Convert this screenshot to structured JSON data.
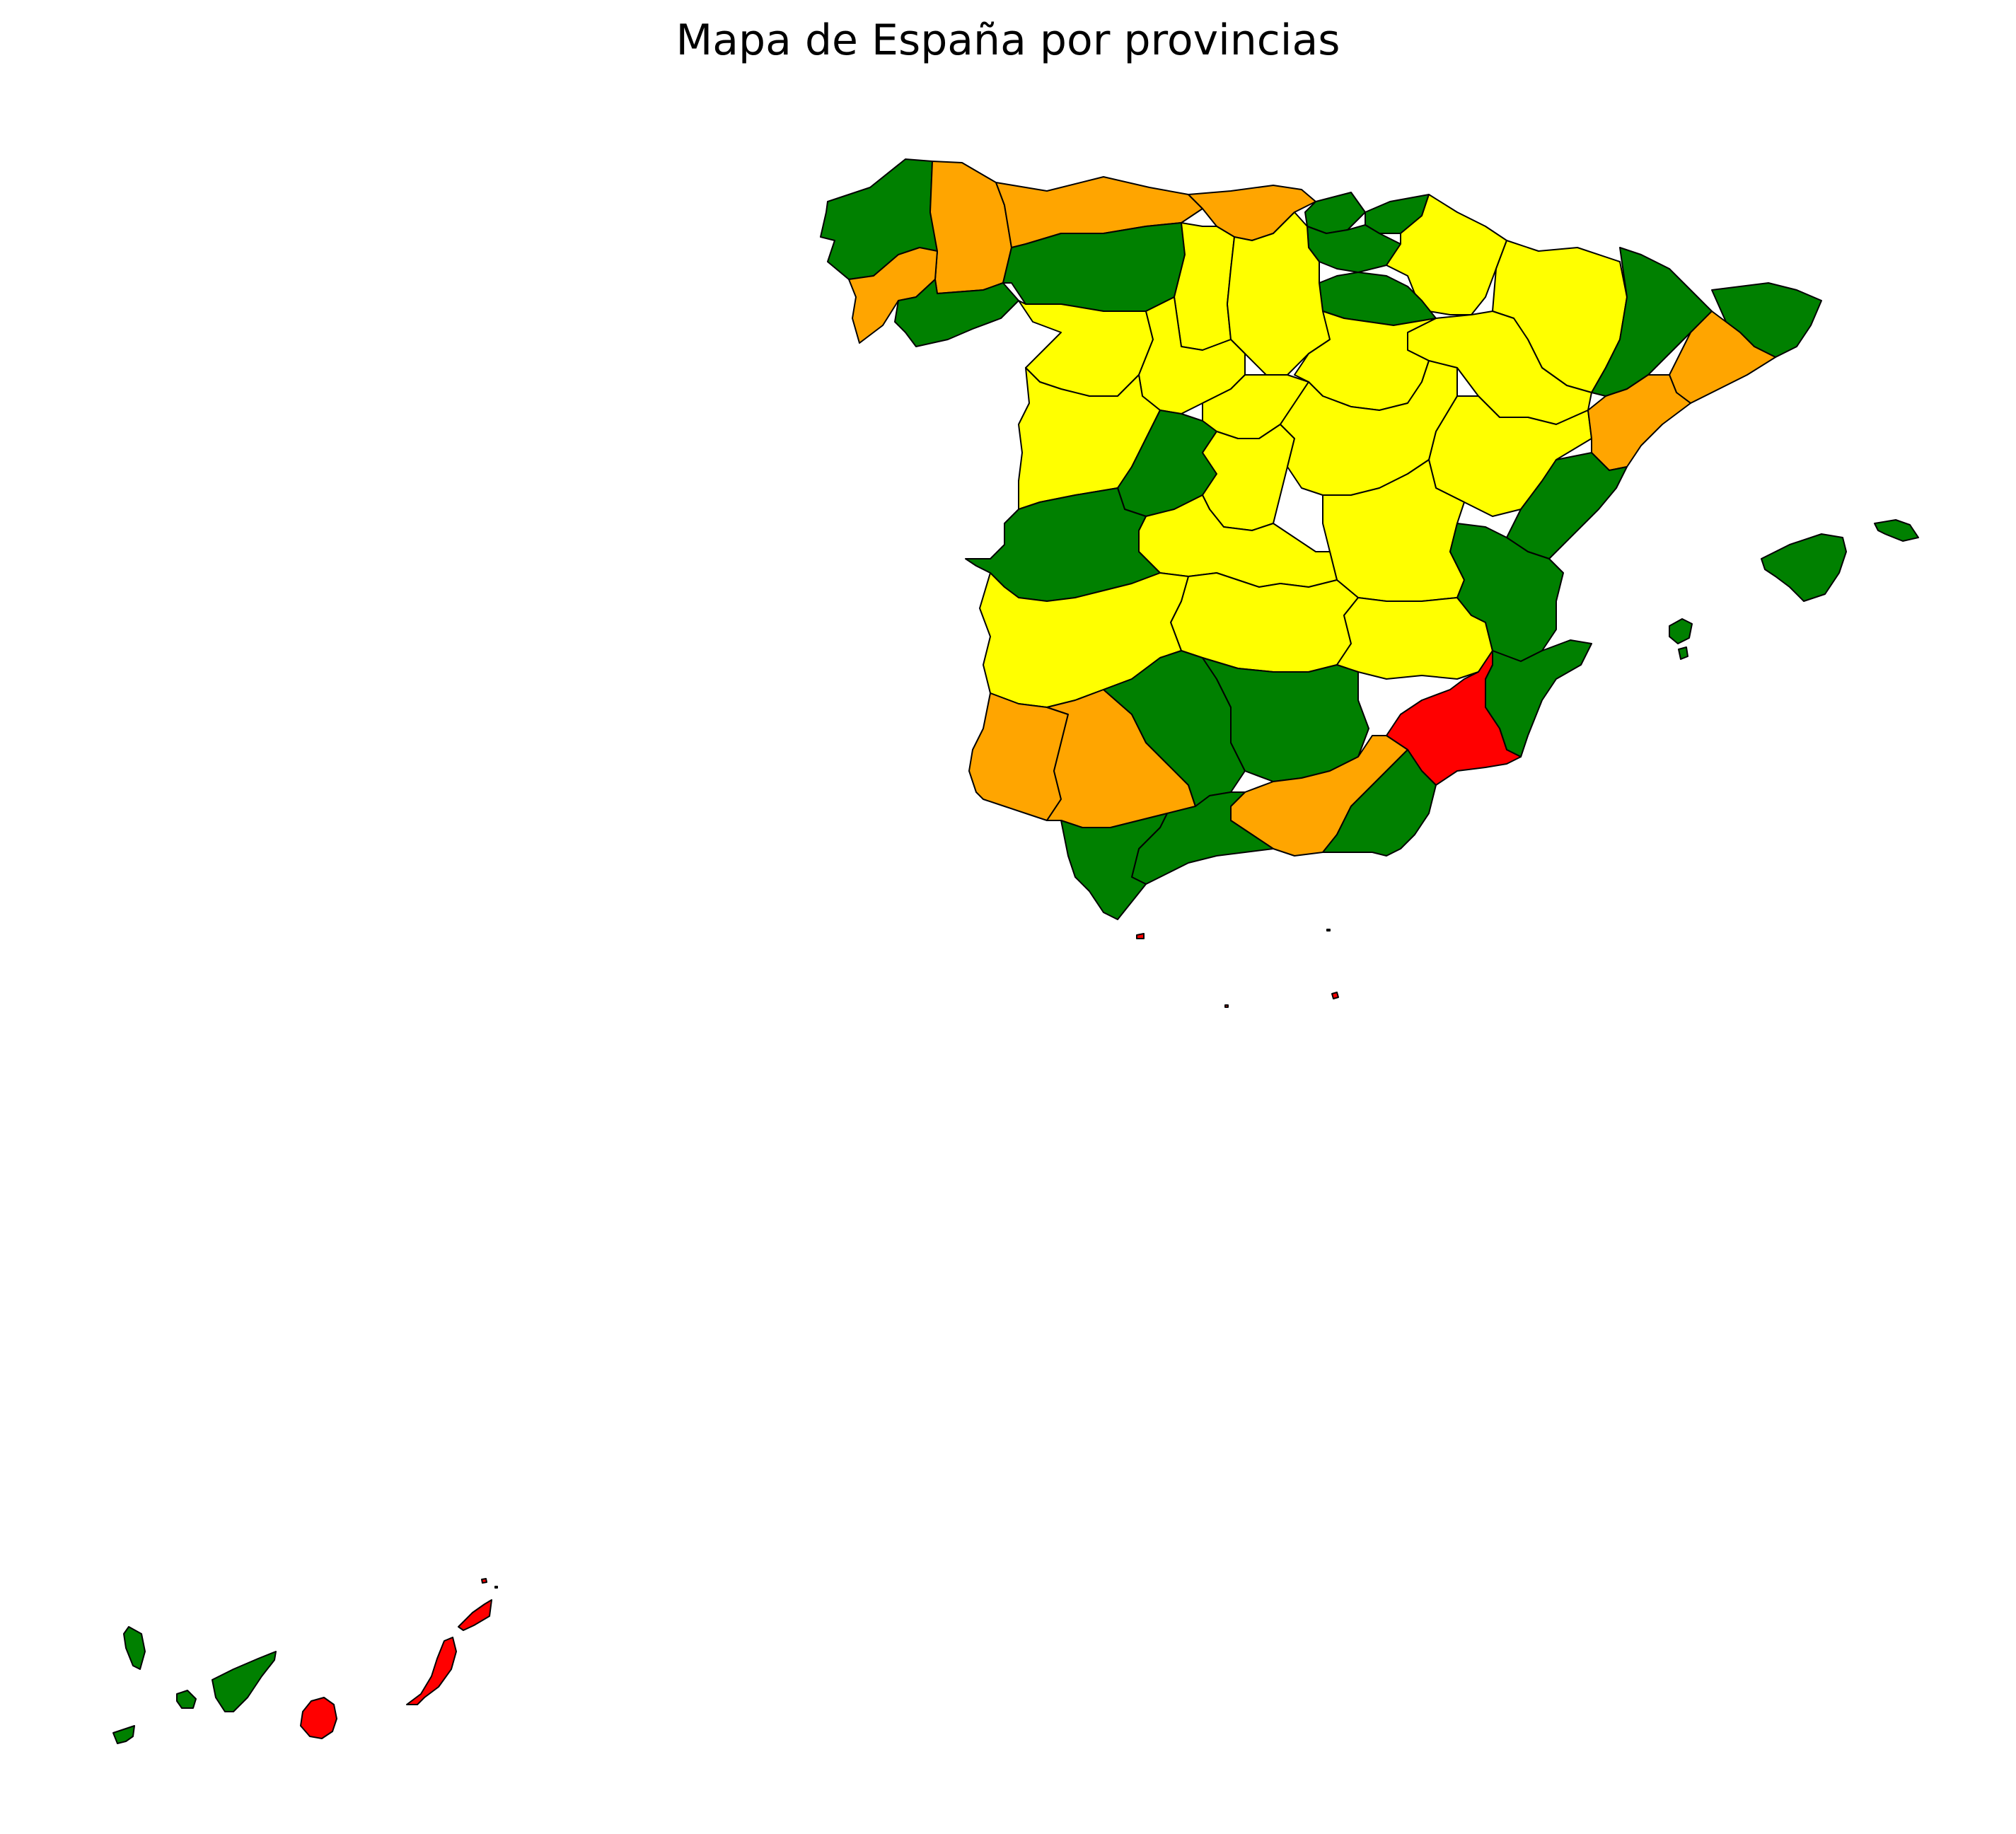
{
  "title": "Mapa de España por provincias",
  "colors": {
    "green": "#008000",
    "yellow": "#ffff00",
    "orange": "#ffa500",
    "red": "#ff0000",
    "border": "#000000",
    "background": "#ffffff"
  }
}
